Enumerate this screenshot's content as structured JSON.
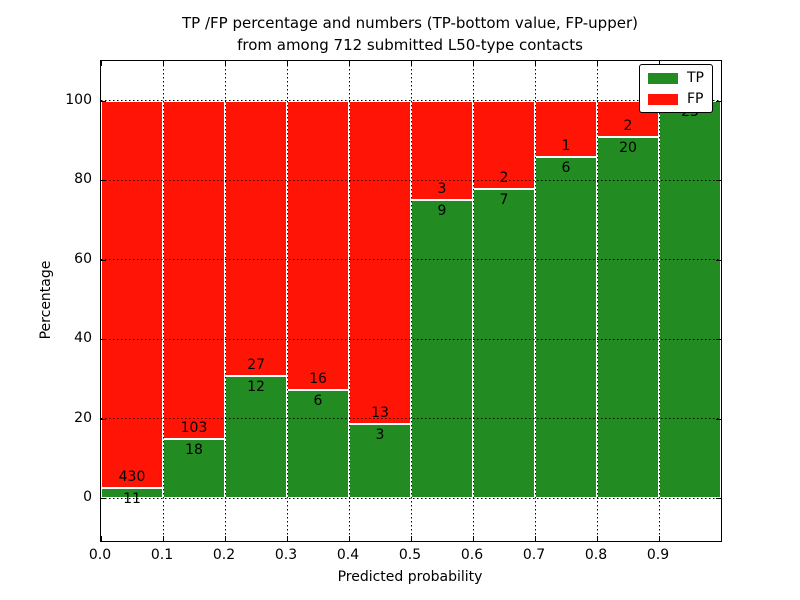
{
  "figure": {
    "title_line1": "TP /FP percentage and numbers (TP-bottom value, FP-upper)",
    "title_line2": "from among 712 submitted L50-type contacts"
  },
  "chart_data": {
    "type": "bar",
    "stacked": true,
    "normalized_to_percent": true,
    "title": "TP /FP percentage and numbers (TP-bottom value, FP-upper) from among 712 submitted L50-type contacts",
    "xlabel": "Predicted probability",
    "ylabel": "Percentage",
    "total_submitted": 712,
    "bin_width": 0.1,
    "categories": [
      "0.0",
      "0.1",
      "0.2",
      "0.3",
      "0.4",
      "0.5",
      "0.6",
      "0.7",
      "0.8",
      "0.9"
    ],
    "series": [
      {
        "name": "TP",
        "color": "#228b22",
        "counts": [
          11,
          18,
          12,
          6,
          3,
          9,
          7,
          6,
          20,
          23
        ]
      },
      {
        "name": "FP",
        "color": "#ff1405",
        "counts": [
          430,
          103,
          27,
          16,
          13,
          3,
          2,
          1,
          2,
          0
        ]
      }
    ],
    "tp_percent": [
      2.5,
      14.9,
      30.8,
      27.3,
      18.8,
      75.0,
      77.8,
      85.7,
      90.9,
      100.0
    ],
    "x_tick_labels": [
      "0.0",
      "0.1",
      "0.2",
      "0.3",
      "0.4",
      "0.5",
      "0.6",
      "0.7",
      "0.8",
      "0.9"
    ],
    "y_tick_labels": [
      "0",
      "20",
      "40",
      "60",
      "80",
      "100"
    ],
    "y_ticks": [
      0,
      20,
      40,
      60,
      80,
      100
    ],
    "xlim": [
      0.0,
      1.0
    ],
    "ylim": [
      -10.8,
      110.1
    ],
    "grid": "dotted",
    "legend": {
      "position": "upper right",
      "entries": [
        {
          "label": "TP",
          "color": "#228b22"
        },
        {
          "label": "FP",
          "color": "#ff1405"
        }
      ]
    }
  }
}
